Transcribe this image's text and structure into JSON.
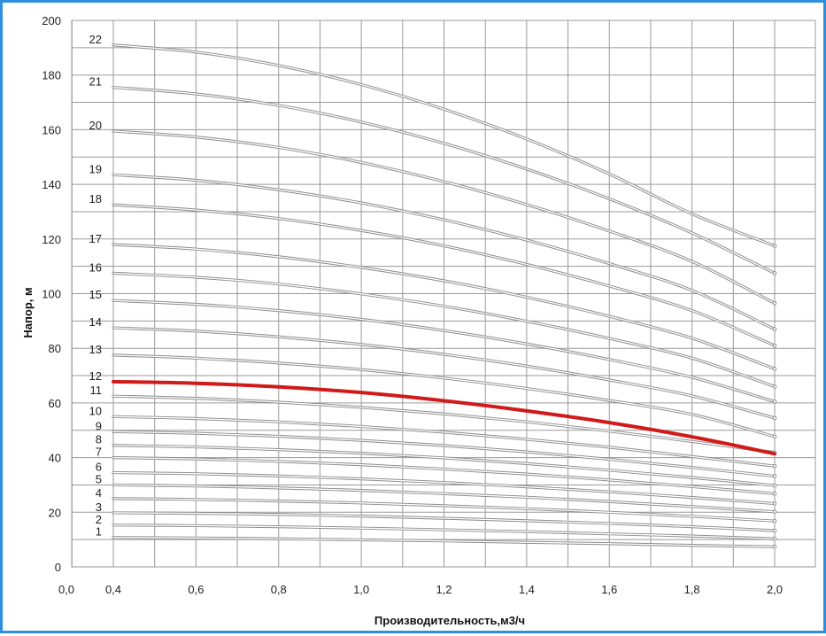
{
  "chart_data": {
    "type": "line",
    "xlabel": "Производительность,м3/ч",
    "ylabel": "Напор, м",
    "xlim": [
      0,
      2.0
    ],
    "ylim": [
      0,
      200
    ],
    "x_ticks": [
      "0,0",
      "0,4",
      "0,6",
      "0,8",
      "1,0",
      "1,2",
      "1,4",
      "1,6",
      "1,8",
      "2,0"
    ],
    "y_ticks": [
      "0",
      "20",
      "40",
      "60",
      "80",
      "100",
      "120",
      "140",
      "160",
      "180",
      "200"
    ],
    "grid": true,
    "highlight_series": "12",
    "colors": {
      "highlight": "#d11a1a",
      "curve": "#8c8c8c",
      "grid": "#9a9a9a",
      "frame": "#2f8fdc"
    },
    "x": [
      0.4,
      0.6,
      0.8,
      1.0,
      1.2,
      1.4,
      1.6,
      1.8,
      2.0
    ],
    "series": [
      {
        "name": "1",
        "values": [
          10.8,
          10.6,
          10.3,
          9.9,
          9.5,
          9.0,
          8.5,
          7.9,
          7.4
        ]
      },
      {
        "name": "2",
        "values": [
          15.3,
          15.1,
          14.7,
          14.2,
          13.6,
          12.9,
          12.1,
          11.3,
          10.3
        ]
      },
      {
        "name": "3",
        "values": [
          19.8,
          19.6,
          19.2,
          18.6,
          17.8,
          16.9,
          15.9,
          14.7,
          13.3
        ]
      },
      {
        "name": "4",
        "values": [
          25.0,
          24.7,
          24.1,
          23.4,
          22.4,
          21.3,
          20.0,
          18.5,
          16.8
        ]
      },
      {
        "name": "5",
        "values": [
          30.0,
          29.6,
          28.9,
          28.0,
          26.8,
          25.5,
          23.9,
          22.1,
          20.2
        ]
      },
      {
        "name": "6",
        "values": [
          34.5,
          34.1,
          33.3,
          32.2,
          30.9,
          29.3,
          27.5,
          25.4,
          23.2
        ]
      },
      {
        "name": "7",
        "values": [
          40.0,
          39.5,
          38.6,
          37.4,
          35.8,
          34.0,
          31.8,
          29.4,
          26.8
        ]
      },
      {
        "name": "8",
        "values": [
          44.5,
          43.9,
          42.9,
          41.6,
          39.9,
          37.8,
          35.4,
          32.7,
          29.8
        ]
      },
      {
        "name": "9",
        "values": [
          49.5,
          48.9,
          47.8,
          46.3,
          44.4,
          42.1,
          39.4,
          36.4,
          33.2
        ]
      },
      {
        "name": "10",
        "values": [
          55.0,
          54.3,
          53.1,
          51.4,
          49.3,
          46.7,
          43.8,
          40.4,
          36.9
        ]
      },
      {
        "name": "11",
        "values": [
          62.5,
          61.7,
          60.3,
          58.4,
          56.0,
          53.1,
          49.7,
          45.9,
          41.9
        ]
      },
      {
        "name": "12",
        "values": [
          67.8,
          67.2,
          65.9,
          63.8,
          60.8,
          57.1,
          52.8,
          47.6,
          41.4
        ]
      },
      {
        "name": "13",
        "values": [
          77.5,
          76.4,
          74.6,
          72.2,
          69.1,
          65.3,
          60.9,
          55.8,
          47.7
        ]
      },
      {
        "name": "14",
        "values": [
          87.5,
          86.3,
          84.2,
          81.4,
          77.8,
          73.5,
          68.4,
          62.6,
          54.5
        ]
      },
      {
        "name": "15",
        "values": [
          97.5,
          96.1,
          93.8,
          90.6,
          86.5,
          81.6,
          75.9,
          69.4,
          60.5
        ]
      },
      {
        "name": "16",
        "values": [
          107.5,
          106.0,
          103.5,
          99.9,
          95.4,
          89.9,
          83.6,
          76.4,
          66.0
        ]
      },
      {
        "name": "17",
        "values": [
          118.0,
          116.3,
          113.5,
          109.6,
          104.7,
          98.7,
          91.7,
          83.7,
          72.5
        ]
      },
      {
        "name": "18",
        "values": [
          132.5,
          130.6,
          127.5,
          123.1,
          117.5,
          110.7,
          102.8,
          93.8,
          81.0
        ]
      },
      {
        "name": "19",
        "values": [
          143.5,
          141.5,
          138.0,
          133.2,
          127.0,
          119.6,
          111.0,
          101.2,
          87.0
        ]
      },
      {
        "name": "20",
        "values": [
          159.5,
          157.3,
          153.5,
          148.0,
          141.0,
          132.6,
          122.9,
          111.8,
          96.5
        ]
      },
      {
        "name": "21",
        "values": [
          175.5,
          173.1,
          168.9,
          162.8,
          155.0,
          145.6,
          134.7,
          122.2,
          107.5
        ]
      },
      {
        "name": "22",
        "values": [
          191.0,
          188.4,
          183.5,
          176.5,
          167.5,
          156.6,
          143.8,
          129.2,
          117.5
        ]
      }
    ]
  }
}
